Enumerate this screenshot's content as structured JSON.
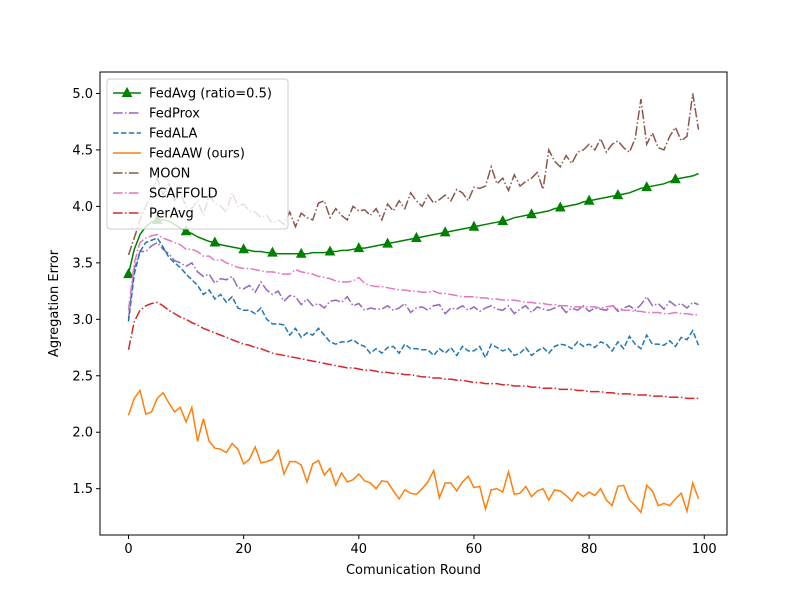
{
  "chart_data": {
    "type": "line",
    "x_label": "Comunication Round",
    "y_label": "Agregation Error",
    "xlim": [
      -4.95,
      103.95
    ],
    "ylim": [
      1.09,
      5.19
    ],
    "xticks": [
      0,
      20,
      40,
      60,
      80,
      100
    ],
    "yticks": [
      1.5,
      {
        "value": 2,
        "label": "2.0"
      },
      2.5,
      {
        "value": 3,
        "label": "3.0"
      },
      3.5,
      {
        "value": 4,
        "label": "4.0"
      },
      4.5,
      {
        "value": 5,
        "label": "5.0"
      }
    ],
    "grid": false,
    "legend": "upper left",
    "x": [
      0,
      1,
      2,
      3,
      4,
      5,
      6,
      7,
      8,
      9,
      10,
      11,
      12,
      13,
      14,
      15,
      16,
      17,
      18,
      19,
      20,
      21,
      22,
      23,
      24,
      25,
      26,
      27,
      28,
      29,
      30,
      31,
      32,
      33,
      34,
      35,
      36,
      37,
      38,
      39,
      40,
      41,
      42,
      43,
      44,
      45,
      46,
      47,
      48,
      49,
      50,
      51,
      52,
      53,
      54,
      55,
      56,
      57,
      58,
      59,
      60,
      61,
      62,
      63,
      64,
      65,
      66,
      67,
      68,
      69,
      70,
      71,
      72,
      73,
      74,
      75,
      76,
      77,
      78,
      79,
      80,
      81,
      82,
      83,
      84,
      85,
      86,
      87,
      88,
      89,
      90,
      91,
      92,
      93,
      94,
      95,
      96,
      97,
      98,
      99
    ],
    "series": [
      {
        "name": "FedAvg (ratio=0.5)",
        "color": "#008000",
        "linestyle": "-",
        "marker": "^",
        "markevery": 5,
        "values": [
          3.4,
          3.62,
          3.75,
          3.82,
          3.86,
          3.88,
          3.88,
          3.87,
          3.84,
          3.81,
          3.78,
          3.76,
          3.73,
          3.71,
          3.69,
          3.68,
          3.66,
          3.65,
          3.64,
          3.63,
          3.62,
          3.61,
          3.6,
          3.6,
          3.59,
          3.59,
          3.58,
          3.58,
          3.58,
          3.58,
          3.58,
          3.58,
          3.59,
          3.59,
          3.59,
          3.6,
          3.6,
          3.61,
          3.61,
          3.62,
          3.63,
          3.63,
          3.64,
          3.65,
          3.66,
          3.67,
          3.68,
          3.69,
          3.7,
          3.71,
          3.72,
          3.73,
          3.74,
          3.75,
          3.76,
          3.77,
          3.78,
          3.79,
          3.8,
          3.81,
          3.82,
          3.83,
          3.84,
          3.85,
          3.86,
          3.87,
          3.88,
          3.9,
          3.91,
          3.92,
          3.93,
          3.94,
          3.95,
          3.96,
          3.98,
          3.99,
          4.0,
          4.01,
          4.02,
          4.04,
          4.05,
          4.06,
          4.07,
          4.08,
          4.09,
          4.1,
          4.11,
          4.12,
          4.14,
          4.16,
          4.17,
          4.18,
          4.19,
          4.2,
          4.22,
          4.24,
          4.25,
          4.26,
          4.27,
          4.29
        ]
      },
      {
        "name": "FedProx",
        "color": "#9467bd",
        "linestyle": "-.",
        "values": [
          3.0,
          3.45,
          3.6,
          3.6,
          3.65,
          3.68,
          3.62,
          3.58,
          3.52,
          3.5,
          3.47,
          3.5,
          3.42,
          3.38,
          3.4,
          3.32,
          3.36,
          3.35,
          3.38,
          3.28,
          3.27,
          3.3,
          3.24,
          3.33,
          3.26,
          3.22,
          3.25,
          3.16,
          3.21,
          3.2,
          3.13,
          3.18,
          3.12,
          3.14,
          3.1,
          3.16,
          3.17,
          3.15,
          3.2,
          3.12,
          3.14,
          3.08,
          3.1,
          3.09,
          3.09,
          3.12,
          3.08,
          3.1,
          3.14,
          3.06,
          3.1,
          3.11,
          3.08,
          3.12,
          3.13,
          3.05,
          3.1,
          3.09,
          3.12,
          3.08,
          3.11,
          3.07,
          3.1,
          3.12,
          3.09,
          3.08,
          3.12,
          3.05,
          3.09,
          3.12,
          3.06,
          3.11,
          3.09,
          3.08,
          3.1,
          3.12,
          3.06,
          3.1,
          3.08,
          3.12,
          3.07,
          3.1,
          3.09,
          3.08,
          3.13,
          3.07,
          3.1,
          3.12,
          3.08,
          3.13,
          3.2,
          3.12,
          3.14,
          3.09,
          3.16,
          3.12,
          3.14,
          3.1,
          3.15,
          3.13
        ]
      },
      {
        "name": "FedALA",
        "color": "#1f77b4",
        "linestyle": "--",
        "values": [
          2.98,
          3.4,
          3.6,
          3.68,
          3.7,
          3.72,
          3.64,
          3.55,
          3.5,
          3.46,
          3.4,
          3.35,
          3.3,
          3.22,
          3.26,
          3.18,
          3.22,
          3.15,
          3.2,
          3.1,
          3.08,
          3.08,
          3.05,
          3.1,
          3.0,
          2.96,
          2.96,
          2.95,
          2.86,
          2.92,
          2.84,
          2.88,
          2.86,
          2.92,
          2.86,
          2.8,
          2.78,
          2.8,
          2.8,
          2.82,
          2.78,
          2.76,
          2.7,
          2.74,
          2.7,
          2.75,
          2.76,
          2.7,
          2.78,
          2.74,
          2.74,
          2.73,
          2.73,
          2.68,
          2.74,
          2.7,
          2.75,
          2.68,
          2.76,
          2.72,
          2.72,
          2.76,
          2.66,
          2.78,
          2.75,
          2.72,
          2.74,
          2.68,
          2.7,
          2.75,
          2.68,
          2.72,
          2.75,
          2.7,
          2.76,
          2.78,
          2.77,
          2.74,
          2.8,
          2.76,
          2.78,
          2.75,
          2.8,
          2.78,
          2.72,
          2.8,
          2.74,
          2.85,
          2.78,
          2.74,
          2.86,
          2.78,
          2.78,
          2.77,
          2.81,
          2.76,
          2.84,
          2.82,
          2.9,
          2.77
        ]
      },
      {
        "name": "FedAAW (ours)",
        "color": "#ff7f0e",
        "linestyle": "-",
        "values": [
          2.15,
          2.3,
          2.37,
          2.16,
          2.18,
          2.3,
          2.35,
          2.26,
          2.18,
          2.22,
          2.09,
          2.22,
          1.92,
          2.12,
          1.92,
          1.86,
          1.85,
          1.82,
          1.9,
          1.85,
          1.72,
          1.76,
          1.87,
          1.73,
          1.74,
          1.76,
          1.84,
          1.63,
          1.74,
          1.74,
          1.71,
          1.56,
          1.72,
          1.75,
          1.62,
          1.68,
          1.53,
          1.64,
          1.56,
          1.58,
          1.63,
          1.57,
          1.55,
          1.5,
          1.57,
          1.56,
          1.48,
          1.41,
          1.49,
          1.46,
          1.45,
          1.5,
          1.56,
          1.66,
          1.42,
          1.55,
          1.55,
          1.48,
          1.56,
          1.61,
          1.51,
          1.52,
          1.32,
          1.49,
          1.5,
          1.47,
          1.65,
          1.45,
          1.46,
          1.52,
          1.43,
          1.48,
          1.5,
          1.4,
          1.49,
          1.48,
          1.44,
          1.39,
          1.47,
          1.43,
          1.47,
          1.44,
          1.5,
          1.4,
          1.35,
          1.52,
          1.53,
          1.4,
          1.35,
          1.29,
          1.53,
          1.48,
          1.35,
          1.37,
          1.35,
          1.41,
          1.46,
          1.3,
          1.55,
          1.41
        ]
      },
      {
        "name": "MOON",
        "color": "#8c564b",
        "linestyle": "-.",
        "values": [
          3.57,
          3.72,
          3.88,
          4.0,
          4.12,
          4.25,
          4.1,
          4.2,
          4.05,
          4.12,
          4.0,
          3.98,
          4.05,
          3.92,
          4.1,
          4.03,
          4.0,
          3.95,
          4.12,
          4.0,
          4.02,
          3.96,
          3.95,
          3.9,
          3.92,
          3.85,
          3.88,
          3.84,
          3.95,
          3.82,
          3.94,
          3.9,
          3.88,
          4.03,
          4.05,
          3.9,
          3.98,
          3.92,
          3.88,
          4.0,
          3.96,
          3.97,
          3.92,
          3.98,
          3.88,
          4.02,
          3.96,
          4.05,
          3.98,
          4.12,
          4.05,
          4.0,
          4.1,
          4.03,
          4.06,
          4.1,
          4.05,
          4.15,
          4.12,
          4.05,
          4.17,
          4.16,
          4.18,
          4.35,
          4.2,
          4.25,
          4.14,
          4.28,
          4.18,
          4.22,
          4.25,
          4.3,
          4.15,
          4.5,
          4.4,
          4.35,
          4.45,
          4.38,
          4.48,
          4.5,
          4.55,
          4.5,
          4.6,
          4.48,
          4.55,
          4.58,
          4.52,
          4.48,
          4.6,
          4.95,
          4.55,
          4.65,
          4.52,
          4.5,
          4.62,
          4.7,
          4.58,
          4.62,
          5.0,
          4.68
        ]
      },
      {
        "name": "SCAFFOLD",
        "color": "#e377c2",
        "linestyle": "-.",
        "values": [
          3.08,
          3.5,
          3.68,
          3.72,
          3.74,
          3.75,
          3.72,
          3.7,
          3.68,
          3.66,
          3.62,
          3.62,
          3.6,
          3.56,
          3.56,
          3.52,
          3.53,
          3.5,
          3.48,
          3.46,
          3.45,
          3.45,
          3.44,
          3.43,
          3.42,
          3.42,
          3.41,
          3.4,
          3.4,
          3.44,
          3.42,
          3.41,
          3.4,
          3.38,
          3.37,
          3.36,
          3.34,
          3.33,
          3.33,
          3.34,
          3.37,
          3.32,
          3.3,
          3.29,
          3.29,
          3.28,
          3.27,
          3.26,
          3.26,
          3.25,
          3.25,
          3.24,
          3.24,
          3.25,
          3.23,
          3.23,
          3.22,
          3.21,
          3.2,
          3.2,
          3.2,
          3.19,
          3.19,
          3.18,
          3.18,
          3.17,
          3.17,
          3.17,
          3.16,
          3.15,
          3.15,
          3.14,
          3.14,
          3.13,
          3.13,
          3.12,
          3.12,
          3.11,
          3.11,
          3.11,
          3.11,
          3.11,
          3.1,
          3.11,
          3.12,
          3.09,
          3.08,
          3.08,
          3.07,
          3.07,
          3.06,
          3.06,
          3.06,
          3.05,
          3.05,
          3.06,
          3.05,
          3.05,
          3.04,
          3.04
        ]
      },
      {
        "name": "PerAvg",
        "color": "#d62728",
        "linestyle": "-.",
        "values": [
          2.73,
          2.98,
          3.08,
          3.12,
          3.14,
          3.15,
          3.12,
          3.08,
          3.05,
          3.02,
          3.0,
          2.97,
          2.95,
          2.92,
          2.9,
          2.88,
          2.86,
          2.84,
          2.82,
          2.8,
          2.78,
          2.77,
          2.75,
          2.74,
          2.72,
          2.7,
          2.69,
          2.68,
          2.67,
          2.66,
          2.65,
          2.64,
          2.63,
          2.62,
          2.61,
          2.6,
          2.59,
          2.58,
          2.57,
          2.57,
          2.56,
          2.55,
          2.55,
          2.54,
          2.53,
          2.53,
          2.52,
          2.52,
          2.51,
          2.51,
          2.5,
          2.49,
          2.49,
          2.48,
          2.48,
          2.47,
          2.47,
          2.46,
          2.46,
          2.45,
          2.44,
          2.44,
          2.43,
          2.43,
          2.43,
          2.42,
          2.42,
          2.41,
          2.41,
          2.41,
          2.4,
          2.4,
          2.39,
          2.39,
          2.39,
          2.38,
          2.38,
          2.38,
          2.37,
          2.37,
          2.36,
          2.36,
          2.36,
          2.35,
          2.35,
          2.34,
          2.34,
          2.34,
          2.33,
          2.33,
          2.33,
          2.32,
          2.32,
          2.32,
          2.31,
          2.31,
          2.31,
          2.3,
          2.3,
          2.3
        ]
      }
    ]
  }
}
